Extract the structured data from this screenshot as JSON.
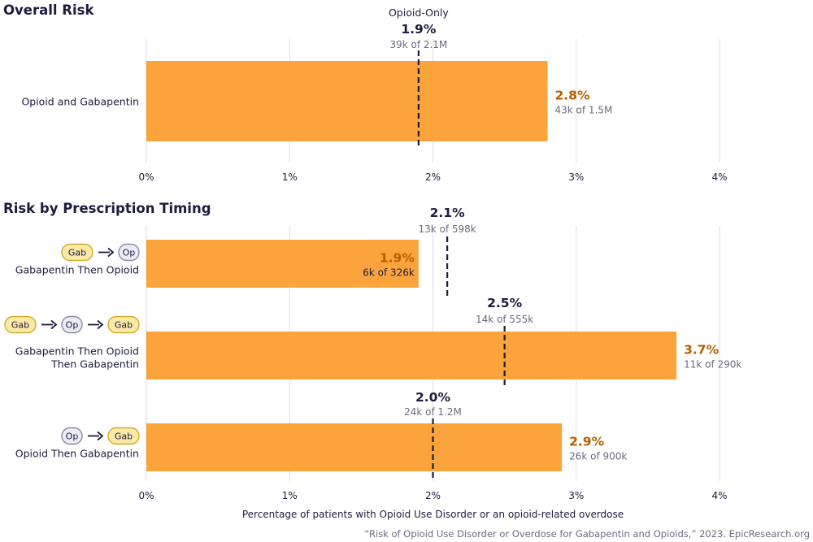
{
  "colors": {
    "bar": "#fca43c",
    "value_text": "#b35f00",
    "reference_line": "#1c1c3f",
    "text_primary": "#1c1c3f",
    "text_secondary": "#6b6b80",
    "grid": "#dddddd",
    "gab_pill_fill": "#fbe9a6",
    "gab_pill_stroke": "#d2ad2e",
    "op_pill_fill": "#ececf6",
    "op_pill_stroke": "#8a8aa6"
  },
  "footer": {
    "source": "“Risk of Opioid Use Disorder or Overdose for Gabapentin and Opioids,” 2023. EpicResearch.org",
    "x_axis_label": "Percentage of patients with Opioid Use Disorder or an opioid-related overdose"
  },
  "chart_data": [
    {
      "type": "bar",
      "orientation": "horizontal",
      "title": "Overall Risk",
      "xlim": [
        0,
        4
      ],
      "ticks": [
        "0%",
        "1%",
        "2%",
        "3%",
        "4%"
      ],
      "grid": true,
      "reference_name": "Opioid-Only",
      "categories": [
        {
          "label_lines": [
            "Opioid and Gabapentin"
          ],
          "value": 2.8,
          "value_label": "2.8%",
          "count_label": "43k of 1.5M",
          "label_inside": false,
          "icons": [],
          "reference": {
            "value": 1.9,
            "value_label": "1.9%",
            "count_label": "39k of 2.1M"
          }
        }
      ]
    },
    {
      "type": "bar",
      "orientation": "horizontal",
      "title": "Risk by Prescription Timing",
      "xlim": [
        0,
        4
      ],
      "ticks": [
        "0%",
        "1%",
        "2%",
        "3%",
        "4%"
      ],
      "grid": true,
      "categories": [
        {
          "label_lines": [
            "Gabapentin Then Opioid"
          ],
          "value": 1.9,
          "value_label": "1.9%",
          "count_label": "6k of 326k",
          "label_inside": true,
          "icons": [
            "Gab",
            "Op"
          ],
          "reference": {
            "value": 2.1,
            "value_label": "2.1%",
            "count_label": "13k of 598k"
          }
        },
        {
          "label_lines": [
            "Gabapentin Then Opioid",
            "Then Gabapentin"
          ],
          "value": 3.7,
          "value_label": "3.7%",
          "count_label": "11k of 290k",
          "label_inside": false,
          "icons": [
            "Gab",
            "Op",
            "Gab"
          ],
          "reference": {
            "value": 2.5,
            "value_label": "2.5%",
            "count_label": "14k of 555k"
          }
        },
        {
          "label_lines": [
            "Opioid Then Gabapentin"
          ],
          "value": 2.9,
          "value_label": "2.9%",
          "count_label": "26k of 900k",
          "label_inside": false,
          "icons": [
            "Op",
            "Gab"
          ],
          "reference": {
            "value": 2.0,
            "value_label": "2.0%",
            "count_label": "24k of 1.2M"
          }
        }
      ]
    }
  ]
}
